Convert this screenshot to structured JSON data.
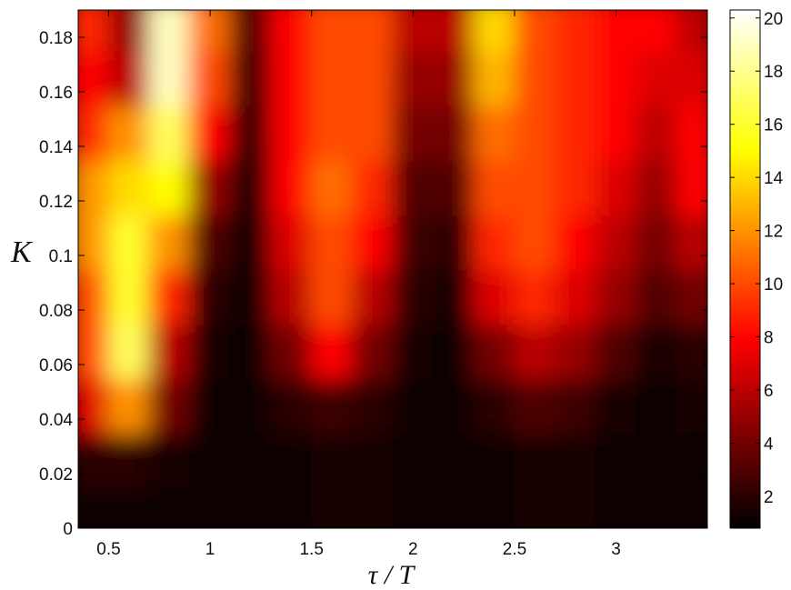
{
  "chart_data": {
    "type": "heatmap",
    "title": "",
    "xlabel": "τ / T",
    "ylabel": "K",
    "xlim": [
      0.35,
      3.45
    ],
    "ylim": [
      0,
      0.19
    ],
    "x_ticks": [
      "0.5",
      "1",
      "1.5",
      "2",
      "2.5",
      "3"
    ],
    "x_tick_values": [
      0.5,
      1,
      1.5,
      2,
      2.5,
      3
    ],
    "y_ticks": [
      "0",
      "0.02",
      "0.04",
      "0.06",
      "0.08",
      "0.1",
      "0.12",
      "0.14",
      "0.16",
      "0.18"
    ],
    "y_tick_values": [
      0,
      0.02,
      0.04,
      0.06,
      0.08,
      0.1,
      0.12,
      0.14,
      0.16,
      0.18
    ],
    "colorbar": {
      "range": [
        0.8,
        20.3
      ],
      "ticks": [
        "2",
        "4",
        "6",
        "8",
        "10",
        "12",
        "14",
        "16",
        "18",
        "20"
      ],
      "tick_values": [
        2,
        4,
        6,
        8,
        10,
        12,
        14,
        16,
        18,
        20
      ],
      "colormap": "hot"
    },
    "grid": false,
    "x": [
      0.4,
      0.6,
      0.8,
      1.0,
      1.2,
      1.4,
      1.6,
      1.8,
      2.0,
      2.2,
      2.4,
      2.6,
      2.8,
      3.0,
      3.2,
      3.4
    ],
    "y": [
      0.005,
      0.025,
      0.045,
      0.065,
      0.085,
      0.105,
      0.125,
      0.145,
      0.165,
      0.185
    ],
    "z": [
      [
        1,
        1,
        1,
        1,
        1,
        1,
        1.5,
        1.5,
        1,
        1,
        1,
        1.5,
        1.5,
        1,
        1,
        1
      ],
      [
        2,
        2,
        1.5,
        1,
        1,
        1,
        1.5,
        1.5,
        1,
        1,
        1,
        1.5,
        1.5,
        1,
        1,
        1
      ],
      [
        7,
        12,
        4,
        1,
        1,
        2,
        2.5,
        2,
        1,
        1,
        2,
        3,
        2.5,
        1.5,
        1,
        1.5
      ],
      [
        10,
        17,
        6,
        1.5,
        1,
        4,
        8,
        4,
        1.5,
        1,
        4,
        6,
        5,
        3,
        1.5,
        2
      ],
      [
        10,
        16,
        9,
        2,
        1,
        6,
        10,
        6,
        2,
        1.5,
        7,
        9,
        7,
        5,
        3,
        4
      ],
      [
        12,
        16,
        12,
        3,
        1,
        7,
        10,
        8,
        2.5,
        2,
        9,
        10,
        8,
        6,
        4,
        6
      ],
      [
        12,
        14,
        15,
        5,
        1.5,
        8,
        11,
        9,
        3,
        3,
        10,
        10,
        9,
        7,
        5,
        8
      ],
      [
        9,
        12,
        17,
        8,
        2,
        8,
        10,
        10,
        4,
        4,
        11,
        10,
        9,
        8,
        6,
        8
      ],
      [
        8,
        6,
        19,
        10,
        2.5,
        8,
        10,
        10,
        5,
        5,
        13,
        10,
        9,
        8,
        7,
        7
      ],
      [
        9,
        5,
        19,
        11,
        3,
        8,
        10,
        10,
        6,
        6,
        14,
        10,
        9,
        8,
        8,
        6
      ]
    ]
  }
}
